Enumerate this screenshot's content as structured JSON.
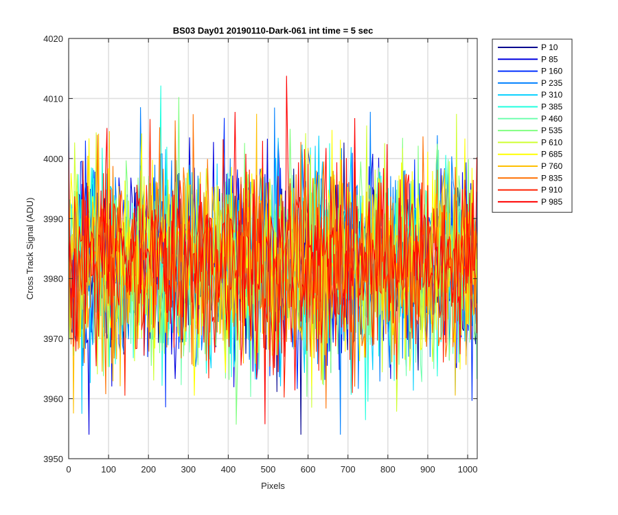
{
  "chart_data": {
    "type": "line",
    "title": "BS03 Day01 20190110-Dark-061 int time = 5 sec",
    "xlabel": "Pixels",
    "ylabel": "Cross Track Signal (ADU)",
    "xlim": [
      0,
      1024
    ],
    "ylim": [
      3950,
      4020
    ],
    "xticks": [
      0,
      100,
      200,
      300,
      400,
      500,
      600,
      700,
      800,
      900,
      1000
    ],
    "yticks": [
      3950,
      3960,
      3970,
      3980,
      3990,
      4000,
      4010,
      4020
    ],
    "grid": true,
    "legend_position": "outside-top-right",
    "signal_mean": 3983,
    "signal_typical_spread": [
      3963,
      4003
    ],
    "signal_extremes": [
      3954,
      4016
    ],
    "series": [
      {
        "name": "P 10",
        "color": "#00008F"
      },
      {
        "name": "P 85",
        "color": "#0000DF"
      },
      {
        "name": "P 160",
        "color": "#0030FF"
      },
      {
        "name": "P 235",
        "color": "#0080FF"
      },
      {
        "name": "P 310",
        "color": "#00CFFF"
      },
      {
        "name": "P 385",
        "color": "#20FFDF"
      },
      {
        "name": "P 460",
        "color": "#70FFAF"
      },
      {
        "name": "P 535",
        "color": "#80FF80"
      },
      {
        "name": "P 610",
        "color": "#CFFF30"
      },
      {
        "name": "P 685",
        "color": "#FFFF00"
      },
      {
        "name": "P 760",
        "color": "#FFBF00"
      },
      {
        "name": "P 835",
        "color": "#FF7000"
      },
      {
        "name": "P 910",
        "color": "#FF2000"
      },
      {
        "name": "P 985",
        "color": "#FF0000"
      }
    ]
  }
}
